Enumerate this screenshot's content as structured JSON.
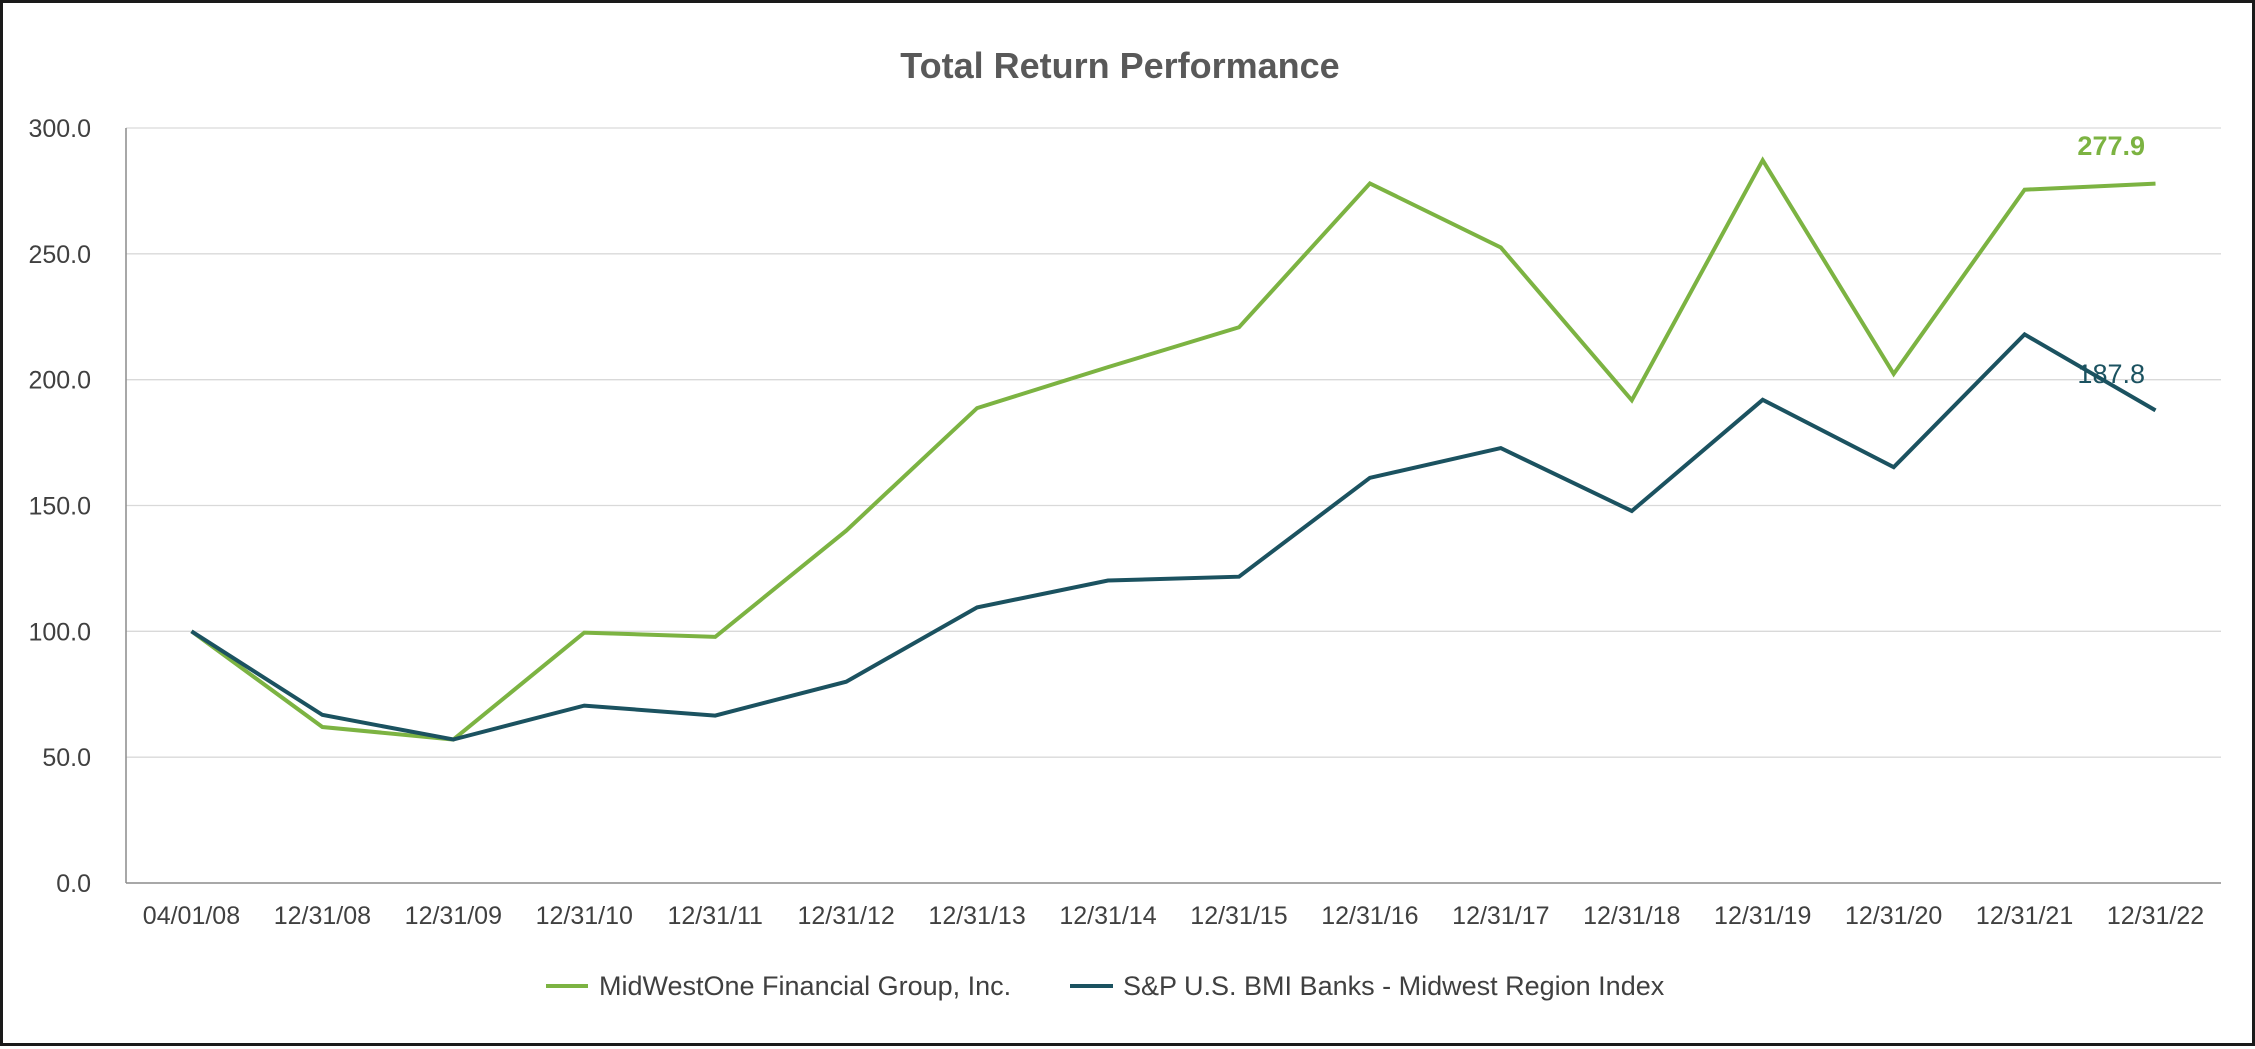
{
  "chart_data": {
    "type": "line",
    "title": "Total Return Performance",
    "xlabel": "",
    "ylabel": "",
    "categories": [
      "04/01/08",
      "12/31/08",
      "12/31/09",
      "12/31/10",
      "12/31/11",
      "12/31/12",
      "12/31/13",
      "12/31/14",
      "12/31/15",
      "12/31/16",
      "12/31/17",
      "12/31/18",
      "12/31/19",
      "12/31/20",
      "12/31/21",
      "12/31/22"
    ],
    "y_ticks": [
      "0.0",
      "50.0",
      "100.0",
      "150.0",
      "200.0",
      "250.0",
      "300.0"
    ],
    "ylim": [
      0,
      300
    ],
    "grid": true,
    "legend_position": "bottom",
    "series": [
      {
        "name": "MidWestOne Financial Group, Inc.",
        "color": "#7cb342",
        "values": [
          100.0,
          62.0,
          57.0,
          99.5,
          97.8,
          140.0,
          188.7,
          205.0,
          220.8,
          278.0,
          252.5,
          191.8,
          287.2,
          202.3,
          275.5,
          277.9
        ],
        "end_label": "277.9"
      },
      {
        "name": "S&P U.S. BMI Banks  - Midwest Region Index",
        "color": "#1b5260",
        "values": [
          100.0,
          66.8,
          57.0,
          70.5,
          66.5,
          80.0,
          109.5,
          120.2,
          121.7,
          161.0,
          172.8,
          147.8,
          192.0,
          165.2,
          218.0,
          187.8
        ],
        "end_label": "187.8"
      }
    ]
  }
}
